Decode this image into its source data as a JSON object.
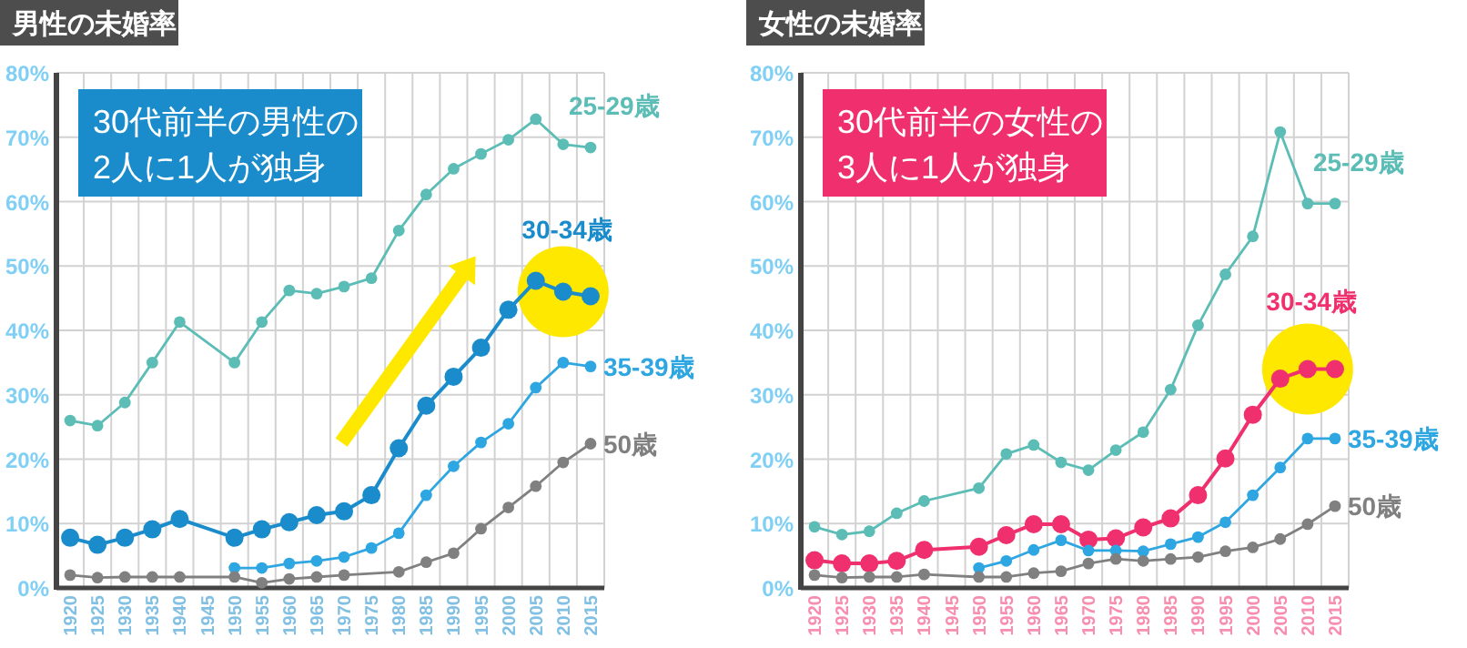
{
  "chart_data": [
    {
      "type": "line",
      "title": "男性の未婚率",
      "annotations": [
        "30代前半の男性の\n2人に1人が独身"
      ],
      "categories": [
        "1920",
        "1925",
        "1930",
        "1935",
        "1940",
        "1945",
        "1950",
        "1955",
        "1960",
        "1965",
        "1970",
        "1975",
        "1980",
        "1985",
        "1990",
        "1995",
        "2000",
        "2005",
        "2010",
        "2015"
      ],
      "ylim": [
        0,
        80
      ],
      "yticks": [
        {
          "value": 0,
          "label": "0%"
        },
        {
          "value": 10,
          "label": "10%"
        },
        {
          "value": 20,
          "label": "20%"
        },
        {
          "value": 30,
          "label": "30%"
        },
        {
          "value": 40,
          "label": "40%"
        },
        {
          "value": 50,
          "label": "50%"
        },
        {
          "value": 60,
          "label": "60%"
        },
        {
          "value": 70,
          "label": "70%"
        },
        {
          "value": 80,
          "label": "80%"
        }
      ],
      "grid": true,
      "marker": "circle",
      "series": [
        {
          "name": "25-29歳",
          "color": "#5bbdb5",
          "values": [
            26.0,
            25.2,
            28.8,
            35.0,
            41.3,
            null,
            35.0,
            41.3,
            46.2,
            45.7,
            46.8,
            48.1,
            55.5,
            61.1,
            65.1,
            67.4,
            69.6,
            72.8,
            68.9,
            68.4
          ]
        },
        {
          "name": "30-34歳",
          "color": "#1a8ccc",
          "values": [
            7.8,
            6.7,
            7.8,
            9.1,
            10.7,
            null,
            7.8,
            9.1,
            10.2,
            11.3,
            11.9,
            14.4,
            21.7,
            28.3,
            32.8,
            37.3,
            43.2,
            47.7,
            46.0,
            45.3
          ]
        },
        {
          "name": "35-39歳",
          "color": "#2ea6e2",
          "values": [
            null,
            null,
            null,
            null,
            null,
            null,
            3.1,
            3.1,
            3.8,
            4.2,
            4.8,
            6.2,
            8.5,
            14.4,
            18.9,
            22.6,
            25.5,
            31.1,
            35.0,
            34.4
          ]
        },
        {
          "name": "50歳",
          "color": "#808080",
          "values": [
            2.0,
            1.6,
            1.7,
            1.7,
            1.7,
            null,
            1.7,
            0.8,
            1.4,
            1.7,
            2.0,
            null,
            2.5,
            4.0,
            5.4,
            9.2,
            12.5,
            15.8,
            19.5,
            22.4
          ]
        }
      ]
    },
    {
      "type": "line",
      "title": "女性の未婚率",
      "annotations": [
        "30代前半の女性の\n3人に1人が独身"
      ],
      "categories": [
        "1920",
        "1925",
        "1930",
        "1935",
        "1940",
        "1945",
        "1950",
        "1955",
        "1960",
        "1965",
        "1970",
        "1975",
        "1980",
        "1985",
        "1990",
        "1995",
        "2000",
        "2005",
        "2010",
        "2015"
      ],
      "ylim": [
        0,
        80
      ],
      "yticks": [
        {
          "value": 0,
          "label": "0%"
        },
        {
          "value": 10,
          "label": "10%"
        },
        {
          "value": 20,
          "label": "20%"
        },
        {
          "value": 30,
          "label": "30%"
        },
        {
          "value": 40,
          "label": "40%"
        },
        {
          "value": 50,
          "label": "50%"
        },
        {
          "value": 60,
          "label": "60%"
        },
        {
          "value": 70,
          "label": "70%"
        },
        {
          "value": 80,
          "label": "80%"
        }
      ],
      "grid": true,
      "marker": "circle",
      "series": [
        {
          "name": "25-29歳",
          "color": "#5bbdb5",
          "values": [
            9.5,
            8.3,
            8.8,
            11.6,
            13.5,
            null,
            15.5,
            20.8,
            22.2,
            19.5,
            18.3,
            21.4,
            24.2,
            30.8,
            40.8,
            48.7,
            54.6,
            70.8,
            59.7,
            59.7
          ]
        },
        {
          "name": "30-34歳",
          "color": "#f0306e",
          "values": [
            4.3,
            3.8,
            3.8,
            4.2,
            5.9,
            null,
            6.4,
            8.2,
            9.9,
            9.9,
            7.5,
            7.7,
            9.4,
            10.8,
            14.4,
            20.1,
            26.9,
            32.5,
            34.0,
            34.0
          ]
        },
        {
          "name": "35-39歳",
          "color": "#2ea6e2",
          "values": [
            null,
            null,
            null,
            null,
            null,
            null,
            3.1,
            4.2,
            5.9,
            7.4,
            5.8,
            5.8,
            5.7,
            6.8,
            7.9,
            10.2,
            14.4,
            18.7,
            23.2,
            23.2
          ]
        },
        {
          "name": "50歳",
          "color": "#808080",
          "values": [
            2.0,
            1.6,
            1.7,
            1.7,
            2.1,
            null,
            1.7,
            1.7,
            2.3,
            2.6,
            3.8,
            4.5,
            4.2,
            4.5,
            4.8,
            5.7,
            6.3,
            7.6,
            9.9,
            12.7
          ]
        }
      ]
    }
  ]
}
